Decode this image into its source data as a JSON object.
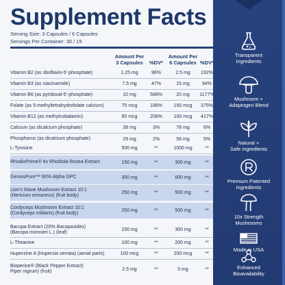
{
  "title": "Supplement Facts",
  "serving_size": "Serving Size: 3 Capsules / 6 Capsules",
  "servings_per_container": "Servings Per Container: 30 / 15",
  "headers": {
    "amount1": [
      "Amount Per",
      "3 Capsules"
    ],
    "dv1": "%DV*",
    "amount2": [
      "Amount Per",
      "6 Capsules"
    ],
    "dv2": "%DV*"
  },
  "rows": [
    {
      "name": [
        "Vitamin B2 (as riboflavin-5'-phosphate)"
      ],
      "a1": "1.25 mg",
      "d1": "96%",
      "a2": "2.5 mg",
      "d2": "192%"
    },
    {
      "name": [
        "Vitamin B3 (as niacinamide)"
      ],
      "a1": "7.5 mg",
      "d1": "47%",
      "a2": "15 mg",
      "d2": "94%"
    },
    {
      "name": [
        "Vitamin B6 (as pyridoxal-5'-phosphate)"
      ],
      "a1": "10 mg",
      "d1": "588%",
      "a2": "20 mg",
      "d2": "1177%"
    },
    {
      "name": [
        "Folate (as 5-methyltetrahydrofolate calcium)"
      ],
      "a1": "75 mcg",
      "d1": "188%",
      "a2": "150 mcg",
      "d2": "375%"
    },
    {
      "name": [
        "Vitamin B12 (as methylcobalamin)"
      ],
      "a1": "50 mcg",
      "d1": "208%",
      "a2": "100 mcg",
      "d2": "417%"
    },
    {
      "name": [
        "Calcium (as dicalcium phosphate)"
      ],
      "a1": "39 mg",
      "d1": "3%",
      "a2": "78 mg",
      "d2": "6%"
    },
    {
      "name": [
        "Phosphorus (as dicalcium phosphate)"
      ],
      "a1": "29 mg",
      "d1": "2%",
      "a2": "58 mg",
      "d2": "5%"
    },
    {
      "name": [
        "L-Tyrosine"
      ],
      "a1": "500 mg",
      "d1": "**",
      "a2": "1000 mg",
      "d2": "**"
    },
    {
      "name": [
        "RhodioPrime® 6x Rhodiola Rosea Extract"
      ],
      "a1": "150 mg",
      "d1": "**",
      "a2": "300 mg",
      "d2": "**"
    },
    {
      "name": [
        "GeniusPure™ 90% Alpha GPC"
      ],
      "a1": "300 mg",
      "d1": "**",
      "a2": "600 mg",
      "d2": "**"
    },
    {
      "name": [
        "Lion's Mane Mushroom Extract 10:1",
        "(Hericium erinaceus) (fruit body)"
      ],
      "a1": "250 mg",
      "d1": "**",
      "a2": "500 mg",
      "d2": "**"
    },
    {
      "name": [
        "Cordyceps Mushroom Extract 10:1",
        "(Cordyceps militaris) (fruit body)"
      ],
      "a1": "250 mg",
      "d1": "**",
      "a2": "500 mg",
      "d2": "**"
    },
    {
      "name": [
        "Bacopa Extract (20% Bacopasides)",
        "(Bacopa monnieri L.) (leaf)"
      ],
      "a1": "150 mg",
      "d1": "**",
      "a2": "300 mg",
      "d2": "**"
    },
    {
      "name": [
        "L-Theanine"
      ],
      "a1": "100 mg",
      "d1": "**",
      "a2": "200 mg",
      "d2": "**"
    },
    {
      "name": [
        "Huperzine A (Huperzia serrata) (aerial parts)"
      ],
      "a1": "100 mcg",
      "d1": "**",
      "a2": "200 mcg",
      "d2": "**"
    },
    {
      "name": [
        "Bioperine® (Black Pepper Extract)",
        "Piper nigrum) (fruit)"
      ],
      "a1": "2.5 mg",
      "d1": "**",
      "a2": "5 mg",
      "d2": "**"
    }
  ],
  "features": [
    {
      "icon": "flask-icon",
      "label": [
        "Transparent",
        "Ingredients"
      ]
    },
    {
      "icon": "mushroom-icon",
      "label": [
        "Mushroom +",
        "Adaptogen Blend"
      ]
    },
    {
      "icon": "leaf-icon",
      "label": [
        "Natural +",
        "Safe ingredients"
      ]
    },
    {
      "icon": "registered-icon",
      "label": [
        "Premium Patented",
        "Ingredients"
      ]
    },
    {
      "icon": "mushroom-strength-icon",
      "label": [
        "10x Strength",
        "Mushrooms"
      ]
    },
    {
      "icon": "us-flag-icon",
      "label": [
        "Made in USA"
      ]
    },
    {
      "icon": "molecule-icon",
      "label": [
        "Enhanced",
        "Bioavailability"
      ]
    }
  ],
  "colors": {
    "navy": "#1e3869",
    "sidebar": "#27427d",
    "highlight": "#c9d6ec"
  }
}
